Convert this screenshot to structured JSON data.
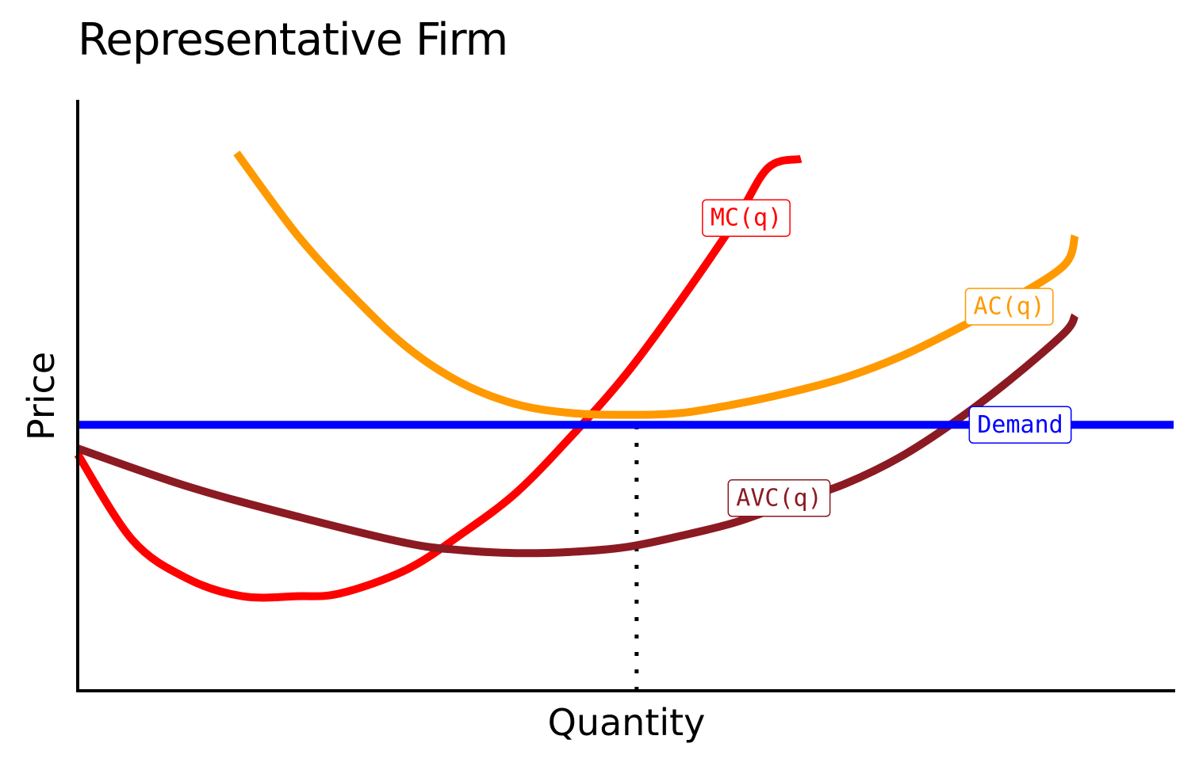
{
  "chart_data": {
    "type": "line",
    "title": "Representative Firm",
    "xlabel": "Quantity",
    "ylabel": "Price",
    "xlim": [
      0,
      10
    ],
    "ylim": [
      0,
      10
    ],
    "ticks": "none",
    "grid": false,
    "series": [
      {
        "name": "MC(q)",
        "color": "#FF0000",
        "x": [
          0,
          0.5,
          1,
          1.5,
          2,
          2.4,
          3,
          3.5,
          4,
          4.5,
          5,
          5.5,
          6,
          6.3,
          6.6
        ],
        "y": [
          4.0,
          2.55,
          1.9,
          1.6,
          1.6,
          1.65,
          2.05,
          2.65,
          3.35,
          4.3,
          5.35,
          6.6,
          7.95,
          8.85,
          9.0
        ]
      },
      {
        "name": "AC(q)",
        "color": "#FF9900",
        "x": [
          1.45,
          2,
          2.5,
          3,
          3.5,
          4,
          4.5,
          5,
          5.5,
          6,
          6.5,
          7,
          7.5,
          8,
          8.5,
          9,
          9.1
        ],
        "y": [
          9.1,
          7.72,
          6.7,
          5.82,
          5.21,
          4.85,
          4.7,
          4.67,
          4.7,
          4.85,
          5.05,
          5.3,
          5.65,
          6.1,
          6.6,
          7.2,
          7.7
        ]
      },
      {
        "name": "AVC(q)",
        "color": "#8B1A22",
        "x": [
          0,
          1,
          2,
          3,
          3.5,
          4,
          4.5,
          5,
          5.5,
          6,
          6.5,
          7,
          7.5,
          8,
          8.5,
          9,
          9.1
        ],
        "y": [
          4.1,
          3.46,
          2.95,
          2.5,
          2.38,
          2.33,
          2.35,
          2.43,
          2.62,
          2.85,
          3.18,
          3.5,
          3.95,
          4.55,
          5.25,
          6.05,
          6.35
        ]
      },
      {
        "name": "Demand",
        "color": "#0000FF",
        "x": [
          0,
          10
        ],
        "y": [
          4.5,
          4.5
        ]
      }
    ],
    "reference_lines": [
      {
        "orientation": "vertical",
        "x": 5.1,
        "y_from": 0,
        "y_to": 4.5,
        "style": "dotted",
        "color": "#000000"
      }
    ],
    "annotations": [
      {
        "text": "MC(q)",
        "series": "MC(q)",
        "x": 6.1,
        "y": 8.0
      },
      {
        "text": "AC(q)",
        "series": "AC(q)",
        "x": 8.5,
        "y": 6.5
      },
      {
        "text": "Demand",
        "series": "Demand",
        "x": 8.6,
        "y": 4.5
      },
      {
        "text": "AVC(q)",
        "series": "AVC(q)",
        "x": 6.4,
        "y": 3.26
      }
    ]
  }
}
